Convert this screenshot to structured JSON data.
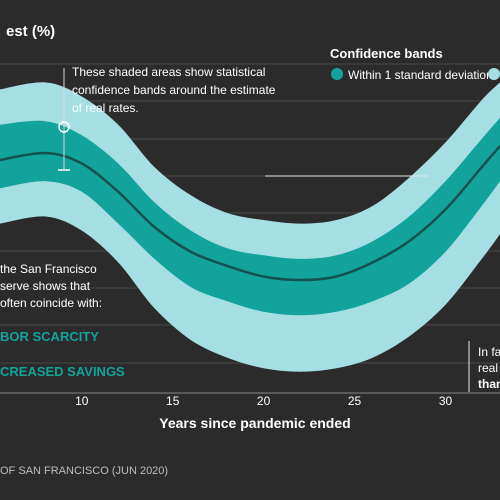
{
  "chart_data": {
    "type": "area",
    "title_fragment": "est (%)",
    "xlabel": "Years since pandemic ended",
    "x_ticks": [
      10,
      15,
      20,
      25,
      30
    ],
    "x_range": [
      5.5,
      33
    ],
    "y_range": [
      0,
      1
    ],
    "grid": true,
    "legend": {
      "title": "Confidence bands",
      "placement": "top-right",
      "items": [
        {
          "label": "Within 1 standard deviation",
          "color": "#12a39c"
        },
        {
          "label": "",
          "color": "#a6dfe3"
        }
      ]
    },
    "colors": {
      "background": "#2b2b2b",
      "outer_band": "#a6dfe3",
      "inner_band": "#12a39c",
      "estimate_line": "#14514f",
      "accent_text": "#12a39c"
    },
    "estimate": {
      "x": [
        5.5,
        8,
        10,
        12,
        14,
        16,
        18,
        20,
        22,
        24,
        26,
        28,
        30,
        32,
        33
      ],
      "y": [
        0.66,
        0.68,
        0.65,
        0.57,
        0.47,
        0.4,
        0.36,
        0.33,
        0.32,
        0.33,
        0.37,
        0.43,
        0.52,
        0.64,
        0.7
      ]
    },
    "band_inner": {
      "upper": [
        0.76,
        0.77,
        0.73,
        0.65,
        0.54,
        0.46,
        0.41,
        0.39,
        0.38,
        0.39,
        0.43,
        0.5,
        0.6,
        0.72,
        0.78
      ],
      "lower": [
        0.58,
        0.6,
        0.57,
        0.48,
        0.38,
        0.3,
        0.26,
        0.23,
        0.22,
        0.23,
        0.26,
        0.31,
        0.4,
        0.53,
        0.6
      ]
    },
    "band_outer": {
      "upper": [
        0.86,
        0.88,
        0.84,
        0.76,
        0.64,
        0.56,
        0.51,
        0.49,
        0.48,
        0.49,
        0.53,
        0.61,
        0.71,
        0.83,
        0.88
      ],
      "lower": [
        0.48,
        0.5,
        0.46,
        0.37,
        0.24,
        0.15,
        0.1,
        0.07,
        0.06,
        0.07,
        0.1,
        0.16,
        0.25,
        0.38,
        0.45
      ]
    }
  },
  "annotations": {
    "callout": [
      "These shaded areas show statistical",
      "confidence bands around the estimate",
      "of real rates."
    ],
    "left_note": [
      "the San Francisco",
      "serve shows that",
      "often coincide with:"
    ],
    "factor_1": "BOR SCARCITY",
    "factor_2": "CREASED SAVINGS",
    "right_note": [
      "In fa",
      "real",
      "than"
    ]
  },
  "source": "OF SAN FRANCISCO (JUN 2020)"
}
